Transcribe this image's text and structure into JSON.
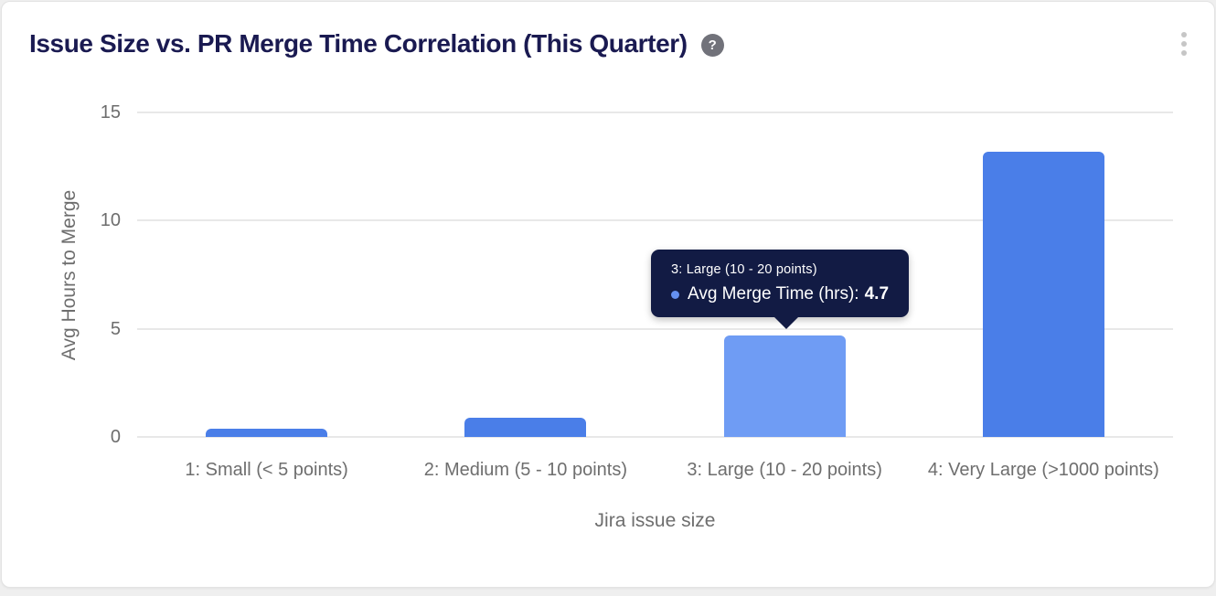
{
  "header": {
    "title": "Issue Size vs. PR Merge Time Correlation (This Quarter)",
    "help_glyph": "?"
  },
  "chart_data": {
    "type": "bar",
    "title": "Issue Size vs. PR Merge Time Correlation (This Quarter)",
    "categories": [
      "1: Small (< 5 points)",
      "2: Medium (5 - 10 points)",
      "3: Large (10 - 20 points)",
      "4: Very Large (>1000 points)"
    ],
    "series": [
      {
        "name": "Avg Merge Time (hrs)",
        "values": [
          0.4,
          0.9,
          4.7,
          13.2
        ]
      }
    ],
    "xlabel": "Jira issue size",
    "ylabel": "Avg Hours to Merge",
    "ylim": [
      0,
      15
    ],
    "yticks": [
      0,
      5,
      10,
      15
    ],
    "grid": true,
    "legend": "none",
    "bar_color": "#4a7ee8",
    "bar_highlight_color": "#6f9cf4",
    "highlighted_index": 2
  },
  "tooltip": {
    "title": "3: Large (10 - 20 points)",
    "series_label": "Avg Merge Time (hrs):",
    "value": "4.7",
    "bg_color": "#121b44",
    "marker_color": "#6590f0"
  }
}
